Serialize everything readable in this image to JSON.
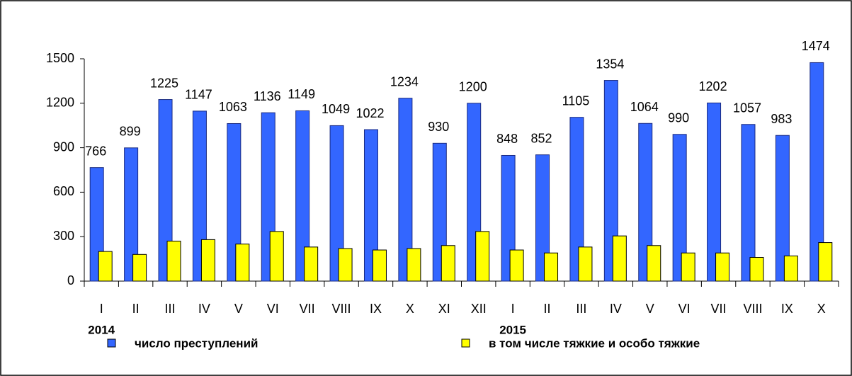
{
  "chart_data": {
    "type": "bar",
    "categories": [
      "I",
      "II",
      "III",
      "IV",
      "V",
      "VI",
      "VII",
      "VIII",
      "IX",
      "X",
      "XI",
      "XII",
      "I",
      "II",
      "III",
      "IV",
      "V",
      "VI",
      "VII",
      "VIII",
      "IX",
      "X"
    ],
    "groups": [
      "2014",
      "2015"
    ],
    "series": [
      {
        "name": "число преступлений",
        "color": "#3366ff",
        "values": [
          766,
          899,
          1225,
          1147,
          1063,
          1136,
          1149,
          1049,
          1022,
          1234,
          930,
          1200,
          848,
          852,
          1105,
          1354,
          1064,
          990,
          1202,
          1057,
          983,
          1474
        ]
      },
      {
        "name": "в том числе тяжкие и особо тяжкие",
        "color": "#ffff00",
        "values": [
          200,
          180,
          270,
          280,
          250,
          335,
          230,
          220,
          210,
          220,
          240,
          335,
          210,
          190,
          230,
          305,
          240,
          190,
          190,
          160,
          170,
          260
        ]
      }
    ],
    "ylim": [
      0,
      1500
    ],
    "yticks": [
      0,
      300,
      600,
      900,
      1200,
      1500
    ],
    "grid": false
  }
}
